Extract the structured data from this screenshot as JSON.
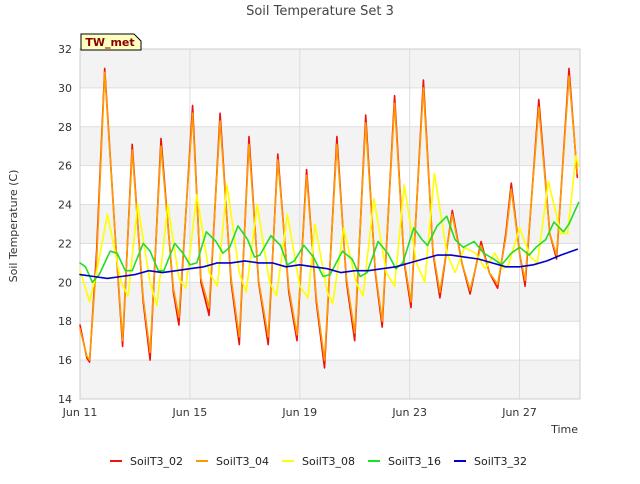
{
  "chart_data": {
    "type": "line",
    "title": "Soil Temperature Set 3",
    "xlabel": "Time",
    "ylabel": "Soil Temperature (C)",
    "badge": "TW_met",
    "x_ticks": [
      {
        "label": "Jun 11",
        "day": 11
      },
      {
        "label": "Jun 15",
        "day": 15
      },
      {
        "label": "Jun 19",
        "day": 19
      },
      {
        "label": "Jun 23",
        "day": 23
      },
      {
        "label": "Jun 27",
        "day": 27
      }
    ],
    "xlim_days": [
      11,
      29.2
    ],
    "ylim": [
      14,
      32
    ],
    "y_ticks": [
      14,
      16,
      18,
      20,
      22,
      24,
      26,
      28,
      30,
      32
    ],
    "grid": true,
    "legend_position": "bottom",
    "colors": {
      "SoilT3_02": "#ee1111",
      "SoilT3_04": "#ff9900",
      "SoilT3_08": "#ffff00",
      "SoilT3_16": "#22dd22",
      "SoilT3_32": "#0000cc",
      "band": "#f3f3f3",
      "badge_bg": "#ffffc0",
      "badge_text": "#880000"
    },
    "series": [
      {
        "name": "SoilT3_02",
        "points": [
          [
            11.0,
            17.8
          ],
          [
            11.25,
            16.1
          ],
          [
            11.35,
            15.9
          ],
          [
            11.6,
            21.5
          ],
          [
            11.9,
            31.0
          ],
          [
            12.3,
            22.0
          ],
          [
            12.55,
            16.7
          ],
          [
            12.9,
            27.1
          ],
          [
            13.3,
            19.0
          ],
          [
            13.55,
            16.0
          ],
          [
            13.95,
            27.4
          ],
          [
            14.4,
            19.5
          ],
          [
            14.6,
            17.8
          ],
          [
            15.1,
            29.1
          ],
          [
            15.4,
            20.0
          ],
          [
            15.7,
            18.3
          ],
          [
            16.1,
            28.7
          ],
          [
            16.5,
            20.0
          ],
          [
            16.8,
            16.8
          ],
          [
            17.15,
            27.5
          ],
          [
            17.5,
            20.0
          ],
          [
            17.85,
            16.8
          ],
          [
            18.2,
            26.6
          ],
          [
            18.6,
            19.5
          ],
          [
            18.9,
            17.0
          ],
          [
            19.25,
            25.8
          ],
          [
            19.6,
            19.0
          ],
          [
            19.9,
            15.6
          ],
          [
            20.35,
            27.5
          ],
          [
            20.7,
            20.0
          ],
          [
            21.0,
            17.0
          ],
          [
            21.4,
            28.6
          ],
          [
            21.75,
            20.5
          ],
          [
            22.0,
            17.7
          ],
          [
            22.45,
            29.6
          ],
          [
            22.8,
            21.0
          ],
          [
            23.05,
            18.7
          ],
          [
            23.5,
            30.4
          ],
          [
            23.85,
            21.5
          ],
          [
            24.1,
            19.2
          ],
          [
            24.55,
            23.7
          ],
          [
            24.9,
            21.0
          ],
          [
            25.2,
            19.4
          ],
          [
            25.6,
            22.1
          ],
          [
            25.9,
            20.5
          ],
          [
            26.2,
            19.7
          ],
          [
            26.5,
            22.5
          ],
          [
            26.7,
            25.1
          ],
          [
            27.0,
            21.5
          ],
          [
            27.2,
            19.8
          ],
          [
            27.7,
            29.4
          ],
          [
            28.1,
            22.5
          ],
          [
            28.35,
            21.2
          ],
          [
            28.8,
            31.0
          ],
          [
            29.1,
            25.4
          ]
        ]
      },
      {
        "name": "SoilT3_04",
        "points": [
          [
            11.0,
            17.6
          ],
          [
            11.25,
            16.2
          ],
          [
            11.35,
            16.0
          ],
          [
            11.6,
            21.0
          ],
          [
            11.9,
            30.8
          ],
          [
            12.3,
            22.0
          ],
          [
            12.55,
            17.0
          ],
          [
            12.9,
            26.8
          ],
          [
            13.3,
            19.2
          ],
          [
            13.55,
            16.4
          ],
          [
            13.95,
            27.0
          ],
          [
            14.4,
            19.7
          ],
          [
            14.6,
            18.2
          ],
          [
            15.1,
            28.7
          ],
          [
            15.4,
            20.2
          ],
          [
            15.7,
            18.7
          ],
          [
            16.1,
            28.3
          ],
          [
            16.5,
            20.2
          ],
          [
            16.8,
            17.2
          ],
          [
            17.15,
            27.1
          ],
          [
            17.5,
            20.1
          ],
          [
            17.85,
            17.2
          ],
          [
            18.2,
            26.3
          ],
          [
            18.6,
            19.7
          ],
          [
            18.9,
            17.3
          ],
          [
            19.25,
            25.5
          ],
          [
            19.6,
            19.2
          ],
          [
            19.9,
            16.0
          ],
          [
            20.35,
            27.1
          ],
          [
            20.7,
            20.2
          ],
          [
            21.0,
            17.4
          ],
          [
            21.4,
            28.2
          ],
          [
            21.75,
            20.6
          ],
          [
            22.0,
            18.0
          ],
          [
            22.45,
            29.2
          ],
          [
            22.8,
            21.1
          ],
          [
            23.05,
            19.0
          ],
          [
            23.5,
            30.0
          ],
          [
            23.85,
            21.6
          ],
          [
            24.1,
            19.5
          ],
          [
            24.55,
            23.5
          ],
          [
            24.9,
            21.0
          ],
          [
            25.2,
            19.6
          ],
          [
            25.6,
            21.9
          ],
          [
            25.9,
            20.5
          ],
          [
            26.2,
            19.9
          ],
          [
            26.5,
            22.3
          ],
          [
            26.7,
            24.8
          ],
          [
            27.0,
            21.5
          ],
          [
            27.2,
            20.1
          ],
          [
            27.7,
            29.0
          ],
          [
            28.1,
            22.5
          ],
          [
            28.35,
            21.4
          ],
          [
            28.8,
            30.6
          ],
          [
            29.1,
            25.6
          ]
        ]
      },
      {
        "name": "SoilT3_08",
        "points": [
          [
            11.0,
            20.6
          ],
          [
            11.35,
            19.0
          ],
          [
            11.6,
            20.5
          ],
          [
            12.0,
            23.5
          ],
          [
            12.5,
            20.0
          ],
          [
            12.75,
            19.3
          ],
          [
            13.1,
            24.0
          ],
          [
            13.55,
            20.0
          ],
          [
            13.8,
            18.8
          ],
          [
            14.2,
            24.0
          ],
          [
            14.6,
            20.2
          ],
          [
            14.85,
            19.7
          ],
          [
            15.25,
            24.5
          ],
          [
            15.7,
            20.5
          ],
          [
            16.0,
            19.8
          ],
          [
            16.35,
            25.0
          ],
          [
            16.8,
            20.5
          ],
          [
            17.05,
            19.5
          ],
          [
            17.45,
            24.0
          ],
          [
            17.9,
            20.0
          ],
          [
            18.15,
            19.3
          ],
          [
            18.55,
            23.5
          ],
          [
            19.0,
            19.8
          ],
          [
            19.3,
            19.2
          ],
          [
            19.55,
            23.0
          ],
          [
            20.0,
            19.5
          ],
          [
            20.2,
            18.9
          ],
          [
            20.6,
            22.8
          ],
          [
            21.05,
            20.0
          ],
          [
            21.3,
            19.3
          ],
          [
            21.7,
            24.3
          ],
          [
            22.15,
            20.5
          ],
          [
            22.45,
            19.8
          ],
          [
            22.8,
            25.0
          ],
          [
            23.25,
            21.0
          ],
          [
            23.55,
            20.0
          ],
          [
            23.9,
            25.6
          ],
          [
            24.35,
            21.5
          ],
          [
            24.65,
            20.5
          ],
          [
            25.0,
            21.8
          ],
          [
            25.4,
            21.5
          ],
          [
            25.75,
            20.7
          ],
          [
            26.1,
            21.5
          ],
          [
            26.4,
            20.7
          ],
          [
            26.6,
            20.9
          ],
          [
            27.0,
            22.8
          ],
          [
            27.4,
            21.3
          ],
          [
            27.65,
            21.0
          ],
          [
            28.05,
            25.2
          ],
          [
            28.5,
            22.5
          ],
          [
            28.75,
            22.5
          ],
          [
            29.05,
            26.5
          ],
          [
            29.15,
            26.0
          ]
        ]
      },
      {
        "name": "SoilT3_16",
        "points": [
          [
            11.0,
            21.0
          ],
          [
            11.2,
            20.8
          ],
          [
            11.45,
            20.0
          ],
          [
            11.7,
            20.4
          ],
          [
            12.1,
            21.6
          ],
          [
            12.35,
            21.5
          ],
          [
            12.65,
            20.6
          ],
          [
            12.9,
            20.6
          ],
          [
            13.3,
            22.0
          ],
          [
            13.55,
            21.6
          ],
          [
            13.85,
            20.6
          ],
          [
            14.05,
            20.6
          ],
          [
            14.45,
            22.0
          ],
          [
            14.75,
            21.5
          ],
          [
            15.0,
            20.9
          ],
          [
            15.25,
            21.0
          ],
          [
            15.6,
            22.6
          ],
          [
            15.95,
            22.1
          ],
          [
            16.2,
            21.5
          ],
          [
            16.45,
            21.8
          ],
          [
            16.75,
            22.9
          ],
          [
            17.1,
            22.2
          ],
          [
            17.35,
            21.3
          ],
          [
            17.55,
            21.4
          ],
          [
            17.95,
            22.4
          ],
          [
            18.3,
            21.9
          ],
          [
            18.55,
            20.9
          ],
          [
            18.8,
            21.1
          ],
          [
            19.15,
            21.9
          ],
          [
            19.5,
            21.3
          ],
          [
            19.85,
            20.3
          ],
          [
            20.1,
            20.4
          ],
          [
            20.55,
            21.6
          ],
          [
            20.9,
            21.2
          ],
          [
            21.2,
            20.3
          ],
          [
            21.45,
            20.5
          ],
          [
            21.85,
            22.1
          ],
          [
            22.2,
            21.5
          ],
          [
            22.5,
            20.7
          ],
          [
            22.75,
            21.0
          ],
          [
            23.15,
            22.8
          ],
          [
            23.45,
            22.2
          ],
          [
            23.65,
            21.9
          ],
          [
            24.0,
            22.9
          ],
          [
            24.35,
            23.4
          ],
          [
            24.65,
            22.2
          ],
          [
            24.95,
            21.8
          ],
          [
            25.35,
            22.1
          ],
          [
            25.7,
            21.5
          ],
          [
            26.05,
            21.2
          ],
          [
            26.35,
            20.9
          ],
          [
            26.7,
            21.5
          ],
          [
            27.0,
            21.8
          ],
          [
            27.35,
            21.4
          ],
          [
            27.6,
            21.8
          ],
          [
            27.95,
            22.2
          ],
          [
            28.25,
            23.1
          ],
          [
            28.6,
            22.6
          ],
          [
            28.8,
            23.0
          ],
          [
            29.15,
            24.1
          ]
        ]
      },
      {
        "name": "SoilT3_32",
        "points": [
          [
            11.0,
            20.4
          ],
          [
            11.5,
            20.3
          ],
          [
            12.0,
            20.2
          ],
          [
            12.5,
            20.3
          ],
          [
            13.0,
            20.4
          ],
          [
            13.5,
            20.6
          ],
          [
            14.0,
            20.5
          ],
          [
            14.5,
            20.6
          ],
          [
            15.0,
            20.7
          ],
          [
            15.5,
            20.8
          ],
          [
            16.0,
            21.0
          ],
          [
            16.5,
            21.0
          ],
          [
            17.0,
            21.1
          ],
          [
            17.5,
            21.0
          ],
          [
            18.0,
            21.0
          ],
          [
            18.5,
            20.8
          ],
          [
            19.0,
            20.9
          ],
          [
            19.5,
            20.8
          ],
          [
            20.0,
            20.7
          ],
          [
            20.5,
            20.5
          ],
          [
            21.0,
            20.6
          ],
          [
            21.5,
            20.6
          ],
          [
            22.0,
            20.7
          ],
          [
            22.5,
            20.8
          ],
          [
            23.0,
            21.0
          ],
          [
            23.5,
            21.2
          ],
          [
            24.0,
            21.4
          ],
          [
            24.5,
            21.4
          ],
          [
            25.0,
            21.3
          ],
          [
            25.5,
            21.2
          ],
          [
            26.0,
            21.0
          ],
          [
            26.5,
            20.8
          ],
          [
            27.0,
            20.8
          ],
          [
            27.5,
            20.9
          ],
          [
            28.0,
            21.1
          ],
          [
            28.5,
            21.4
          ],
          [
            29.1,
            21.7
          ]
        ]
      }
    ]
  }
}
